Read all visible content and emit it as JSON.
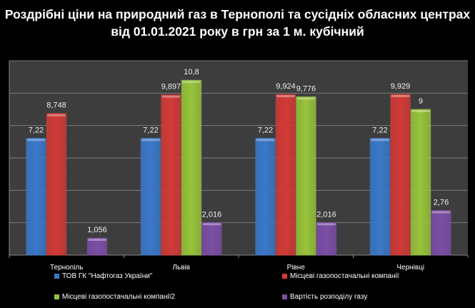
{
  "chart_data": {
    "type": "bar",
    "title": "Роздрібні ціни на природний газ в Тернополі та сусідніх обласних центрах від 01.01.2021 року в грн за 1 м. кубічний",
    "categories": [
      "Тернопіль",
      "Львів",
      "Рівне",
      "Чернівці"
    ],
    "series": [
      {
        "name": "ТОВ ГК \"Нафтогаз України\"",
        "color": "#3a78c9",
        "values": [
          7.22,
          7.22,
          7.22,
          7.22
        ],
        "labels": [
          "7,22",
          "7,22",
          "7,22",
          "7,22"
        ]
      },
      {
        "name": "Місцеві газопостачальні компанії",
        "color": "#d23a36",
        "values": [
          8.748,
          9.897,
          9.924,
          9.929
        ],
        "labels": [
          "8,748",
          "9,897",
          "9,924",
          "9,929"
        ]
      },
      {
        "name": "Місцеві газопостачальні компанії2",
        "color": "#98c43a",
        "values": [
          null,
          10.8,
          9.776,
          9
        ],
        "labels": [
          "",
          "10,8",
          "9,776",
          "9"
        ]
      },
      {
        "name": "Вартість розподілу газу",
        "color": "#7b4ea6",
        "values": [
          1.056,
          2.016,
          2.016,
          2.76
        ],
        "labels": [
          "1,056",
          "2,016",
          "2,016",
          "2,76"
        ]
      }
    ],
    "ylim": [
      0,
      12
    ],
    "ytick_step": 2,
    "grid": true,
    "y_axis_labels_shown": false,
    "legend_placement": "bottom"
  }
}
